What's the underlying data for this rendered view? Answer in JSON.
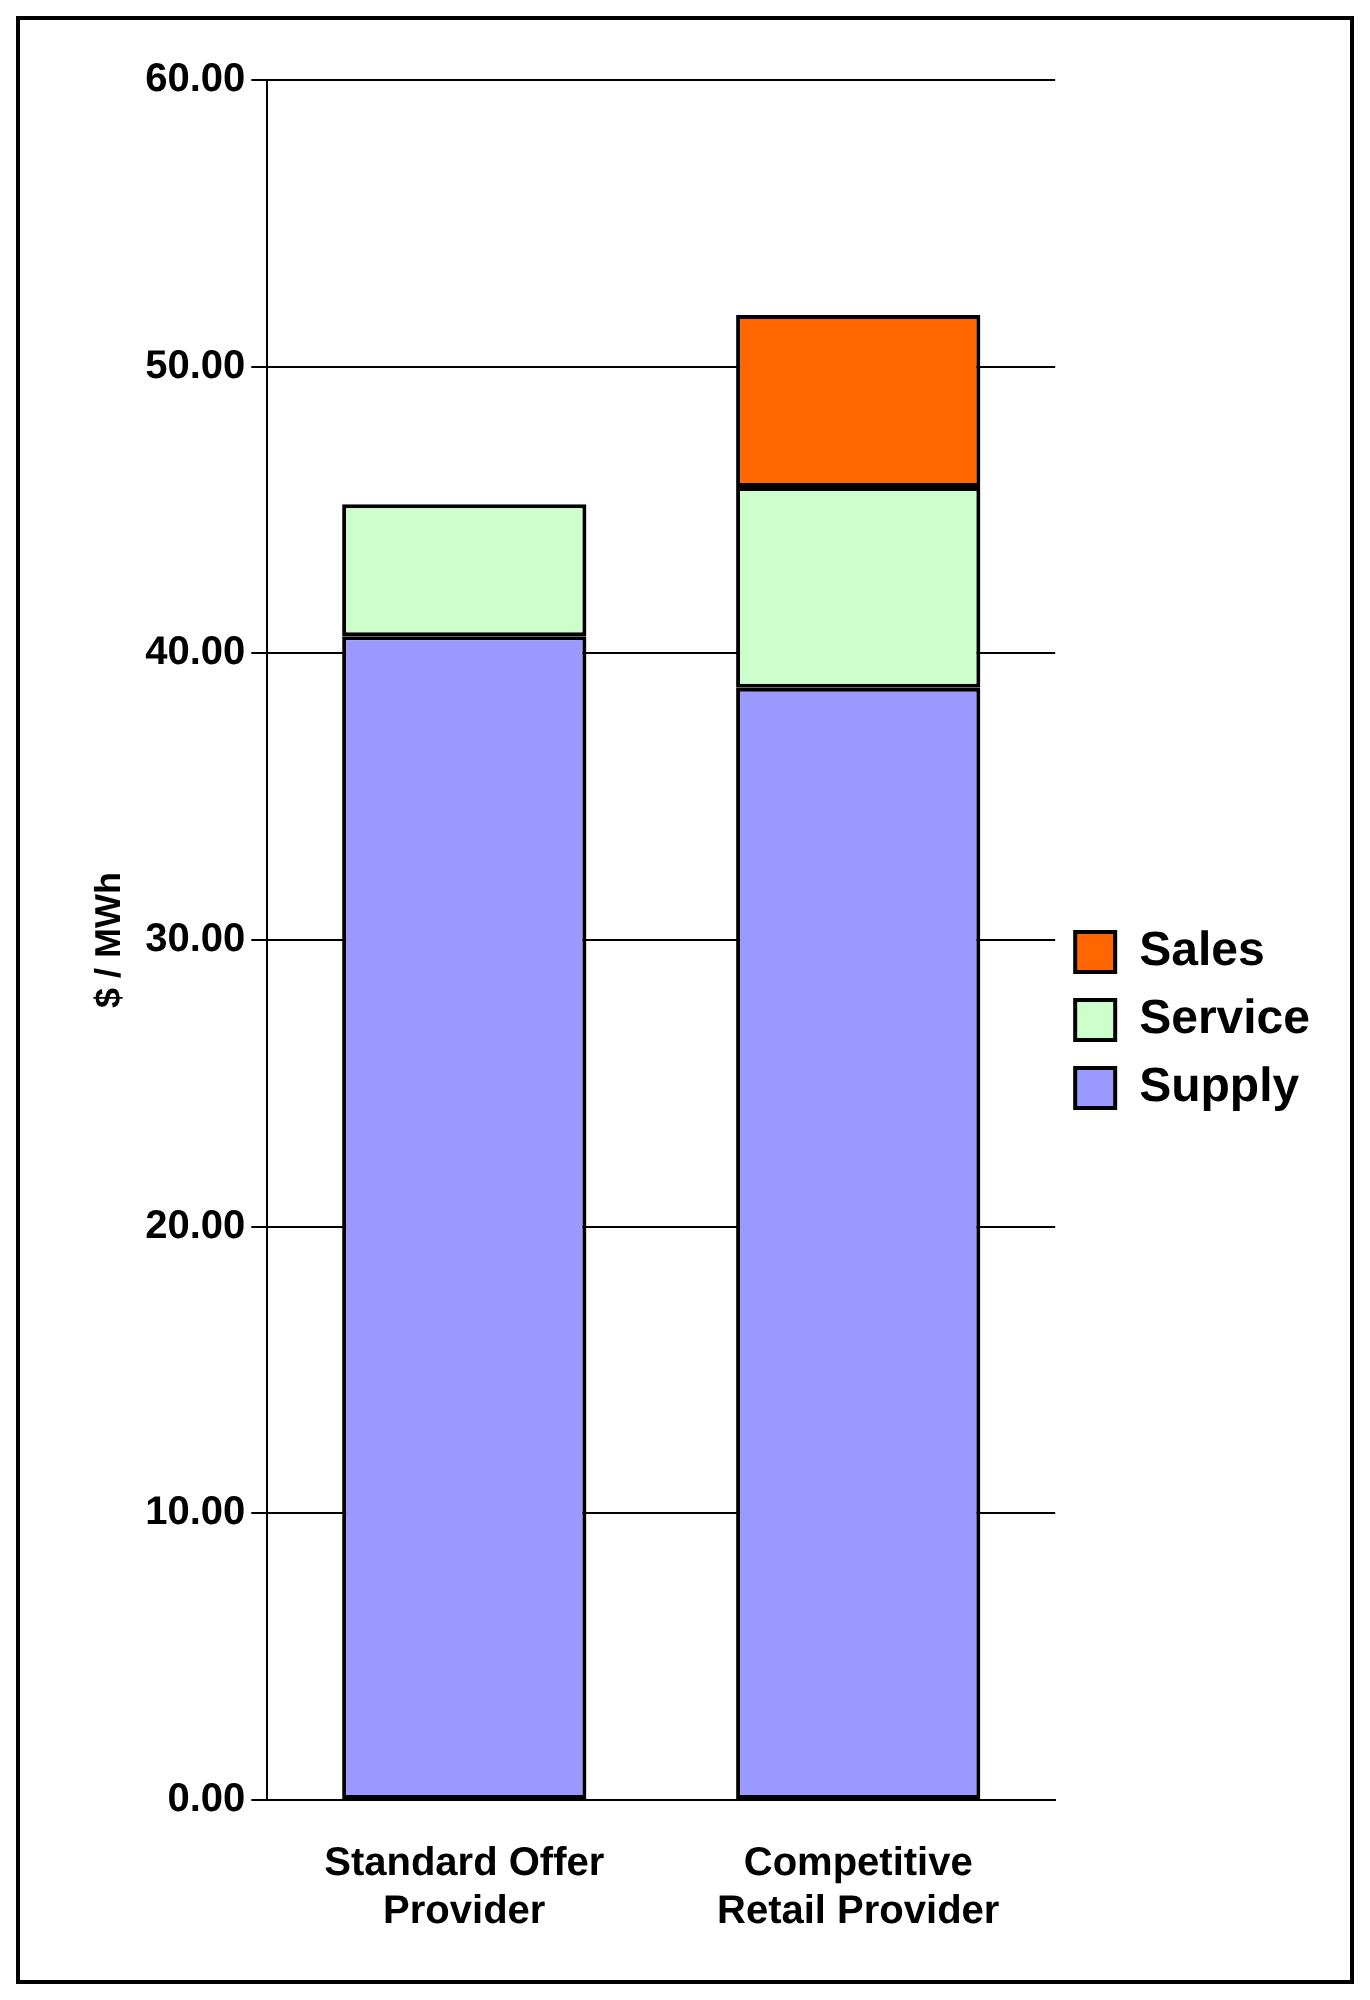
{
  "chart_data": {
    "type": "bar",
    "stacked": true,
    "ylabel": "$ / MWh",
    "categories": [
      "Standard Offer Provider",
      "Competitive Retail Provider"
    ],
    "series": [
      {
        "name": "Supply",
        "color": "#9999ff",
        "values": [
          40.6,
          38.8
        ]
      },
      {
        "name": "Service",
        "color": "#ccffcc",
        "values": [
          4.6,
          7.0
        ]
      },
      {
        "name": "Sales",
        "color": "#ff6600",
        "values": [
          null,
          6.0
        ]
      }
    ],
    "ylim": [
      0,
      60
    ],
    "yticks": [
      {
        "value": 0,
        "label": "0.00"
      },
      {
        "value": 10,
        "label": "10.00"
      },
      {
        "value": 20,
        "label": "20.00"
      },
      {
        "value": 30,
        "label": "30.00"
      },
      {
        "value": 40,
        "label": "40.00"
      },
      {
        "value": 50,
        "label": "50.00"
      },
      {
        "value": 60,
        "label": "60.00"
      }
    ],
    "grid": "y",
    "legend": "right"
  }
}
